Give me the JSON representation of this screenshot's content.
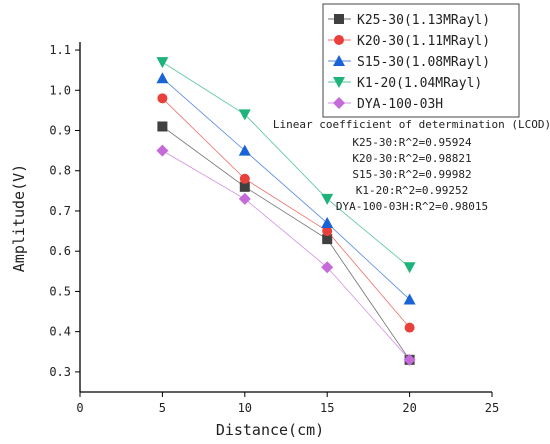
{
  "chart_data": {
    "type": "line",
    "title": "",
    "xlabel": "Distance(cm)",
    "ylabel": "Amplitude(V)",
    "xlim": [
      0,
      25
    ],
    "ylim": [
      0.25,
      1.12
    ],
    "xticks": [
      0,
      5,
      10,
      15,
      20,
      25
    ],
    "yticks": [
      0.3,
      0.4,
      0.5,
      0.6,
      0.7,
      0.8,
      0.9,
      1.0,
      1.1
    ],
    "ytick_labels": [
      "0.3",
      "0.4",
      "0.5",
      "0.6",
      "0.7",
      "0.8",
      "0.9",
      "1.0",
      "1.1"
    ],
    "grid": false,
    "legend_position": "top-right",
    "series": [
      {
        "name": "K25-30(1.13MRayl)",
        "color": "#404040",
        "marker": "square",
        "x": [
          5,
          10,
          15,
          20
        ],
        "values": [
          0.91,
          0.76,
          0.63,
          0.33
        ]
      },
      {
        "name": "K20-30(1.11MRayl)",
        "color": "#e8403a",
        "marker": "circle",
        "x": [
          5,
          10,
          15,
          20
        ],
        "values": [
          0.98,
          0.78,
          0.65,
          0.41
        ]
      },
      {
        "name": "S15-30(1.08MRayl)",
        "color": "#1a63d6",
        "marker": "triangle-up",
        "x": [
          5,
          10,
          15,
          20
        ],
        "values": [
          1.03,
          0.85,
          0.67,
          0.48
        ]
      },
      {
        "name": "K1-20(1.04MRayl)",
        "color": "#1db37a",
        "marker": "triangle-down",
        "x": [
          5,
          10,
          15,
          20
        ],
        "values": [
          1.07,
          0.94,
          0.73,
          0.56
        ]
      },
      {
        "name": "DYA-100-03H",
        "color": "#c46ad9",
        "marker": "diamond",
        "x": [
          5,
          10,
          15,
          20
        ],
        "values": [
          0.85,
          0.73,
          0.56,
          0.33
        ]
      }
    ],
    "annotation": {
      "title": "Linear coefficient of determination (LCOD)",
      "lines": [
        "K25-30:R^2=0.95924",
        "K20-30:R^2=0.98821",
        "S15-30:R^2=0.99982",
        "K1-20:R^2=0.99252",
        "DYA-100-03H:R^2=0.98015"
      ]
    }
  }
}
